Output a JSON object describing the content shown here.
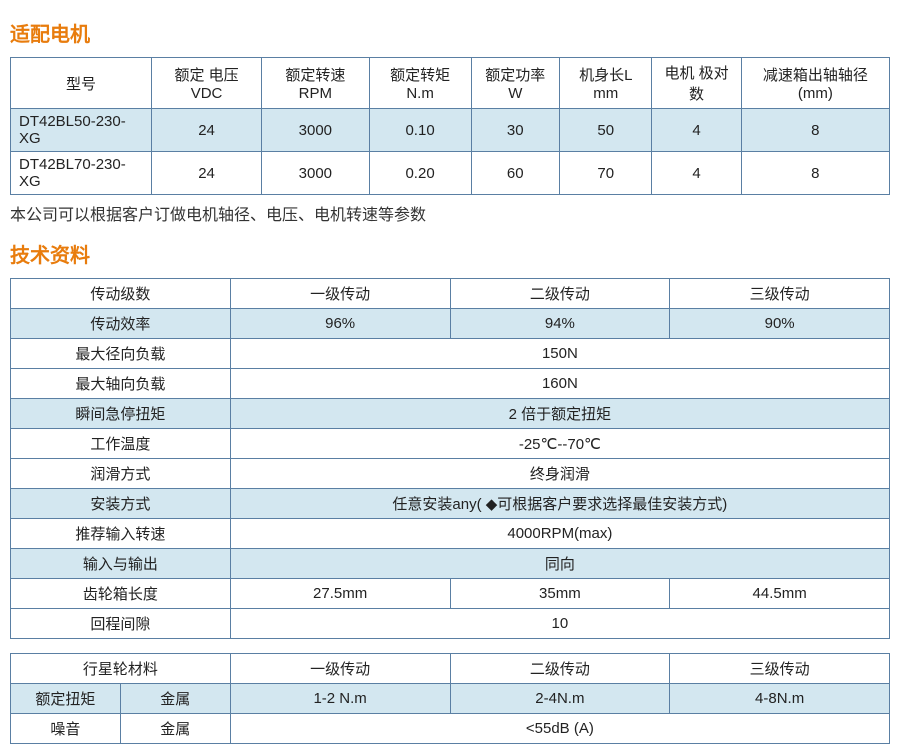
{
  "colors": {
    "heading": "#e87c0d",
    "border": "#5a7fa3",
    "row_alt_bg": "#d3e7f0",
    "text": "#333333",
    "bg": "#ffffff"
  },
  "section1": {
    "title": "适配电机",
    "headers": [
      "型号",
      "额定 电压 VDC",
      "额定转速 RPM",
      "额定转矩 N.m",
      "额定功率 W",
      "机身长L mm",
      "电机 极对数",
      "减速箱出轴轴径(mm)"
    ],
    "rows": [
      [
        "DT42BL50-230-XG",
        "24",
        "3000",
        "0.10",
        "30",
        "50",
        "4",
        "8"
      ],
      [
        "DT42BL70-230-XG",
        "24",
        "3000",
        "0.20",
        "60",
        "70",
        "4",
        "8"
      ]
    ],
    "note": "本公司可以根据客户订做电机轴径、电压、电机转速等参数"
  },
  "section2": {
    "title": "技术资料",
    "rows": [
      {
        "label": "传动级数",
        "type": "3col",
        "c1": "一级传动",
        "c2": "二级传动",
        "c3": "三级传动",
        "alt": false
      },
      {
        "label": "传动效率",
        "type": "3col",
        "c1": "96%",
        "c2": "94%",
        "c3": "90%",
        "alt": true
      },
      {
        "label": "最大径向负载",
        "type": "span",
        "val": "150N",
        "alt": false
      },
      {
        "label": "最大轴向负载",
        "type": "span",
        "val": "160N",
        "alt": false
      },
      {
        "label": "瞬间急停扭矩",
        "type": "span",
        "val": "2 倍于额定扭矩",
        "alt": true
      },
      {
        "label": "工作温度",
        "type": "span",
        "val": "-25℃--70℃",
        "alt": false
      },
      {
        "label": "润滑方式",
        "type": "span",
        "val": "终身润滑",
        "alt": false
      },
      {
        "label": "安装方式",
        "type": "span",
        "val": "任意安装any( ◆可根据客户要求选择最佳安装方式)",
        "alt": true
      },
      {
        "label": "推荐输入转速",
        "type": "span",
        "val": "4000RPM(max)",
        "alt": false
      },
      {
        "label": "输入与输出",
        "type": "span",
        "val": "同向",
        "alt": true
      },
      {
        "label": "齿轮箱长度",
        "type": "3col",
        "c1": "27.5mm",
        "c2": "35mm",
        "c3": "44.5mm",
        "alt": false
      },
      {
        "label": "回程间隙",
        "type": "span",
        "val": "10",
        "alt": false
      }
    ],
    "mat": {
      "header": {
        "l1": "行星轮材料",
        "c1": "一级传动",
        "c2": "二级传动",
        "c3": "三级传动"
      },
      "r1": {
        "l1": "额定扭矩",
        "l2": "金属",
        "c1": "1-2 N.m",
        "c2": "2-4N.m",
        "c3": "4-8N.m",
        "alt": true
      },
      "r2": {
        "l1": "噪音",
        "l2": "金属",
        "val": "<55dB (A)",
        "alt": false
      }
    }
  }
}
